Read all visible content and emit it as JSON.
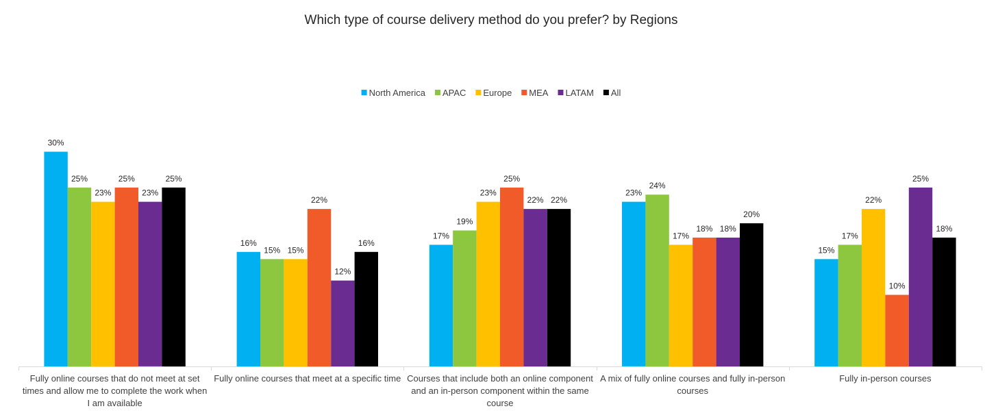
{
  "chart_data": {
    "type": "bar",
    "title": "Which type of course delivery method do you prefer? by Regions",
    "xlabel": "",
    "ylabel": "",
    "ylim": [
      0,
      30
    ],
    "grid": false,
    "legend_position": "top-center",
    "value_suffix": "%",
    "categories": [
      [
        "Fully online courses that do not meet at set",
        "times and allow me to complete the work when",
        "I am available"
      ],
      [
        "Fully online courses that meet at a specific time"
      ],
      [
        "Courses that include both an online component",
        "and an in-person component within the same",
        "course"
      ],
      [
        "A mix of fully online courses and fully in-person",
        "courses"
      ],
      [
        "Fully in-person courses"
      ]
    ],
    "series": [
      {
        "name": "North America",
        "color": "#00B0F0",
        "values": [
          30,
          16,
          17,
          23,
          15
        ]
      },
      {
        "name": "APAC",
        "color": "#8DC63F",
        "values": [
          25,
          15,
          19,
          24,
          17
        ]
      },
      {
        "name": "Europe",
        "color": "#FFC000",
        "values": [
          23,
          15,
          23,
          17,
          22
        ]
      },
      {
        "name": "MEA",
        "color": "#F15A29",
        "values": [
          25,
          22,
          25,
          18,
          10
        ]
      },
      {
        "name": "LATAM",
        "color": "#6B2C91",
        "values": [
          23,
          12,
          22,
          18,
          25
        ]
      },
      {
        "name": "All",
        "color": "#000000",
        "values": [
          25,
          16,
          22,
          20,
          18
        ]
      }
    ]
  }
}
